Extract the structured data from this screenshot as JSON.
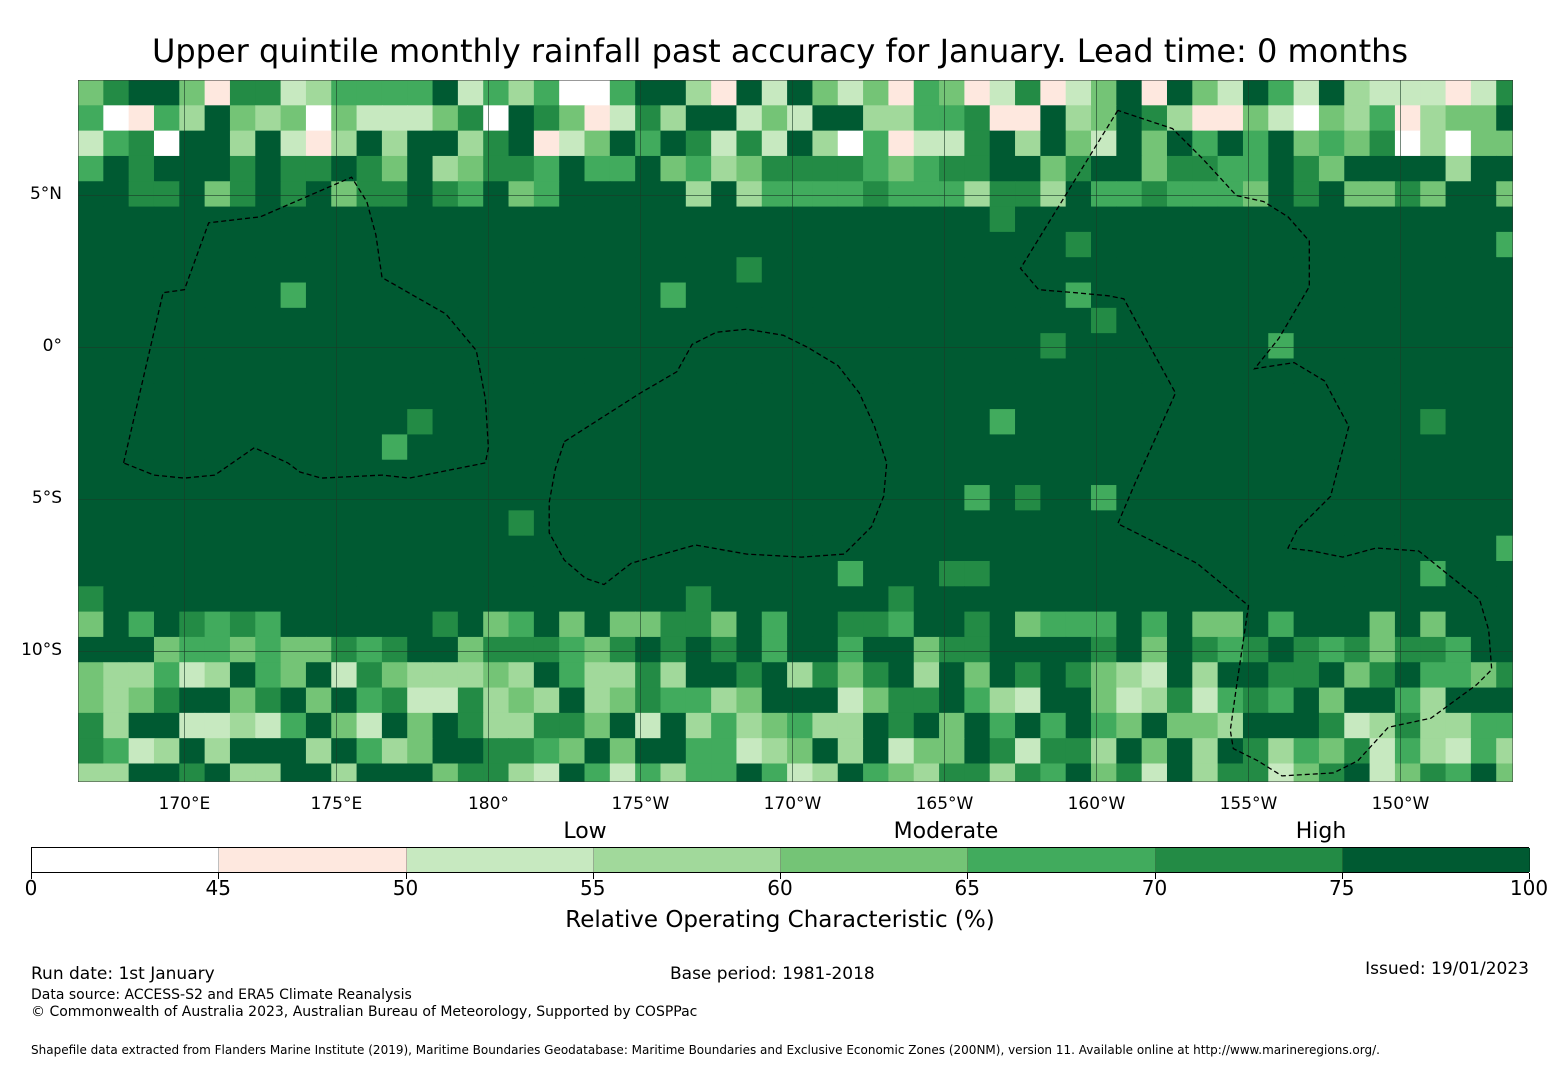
{
  "title": "Upper quintile monthly rainfall past accuracy for January. Lead time: 0 months",
  "map": {
    "lon_range": [
      166.5,
      213.7
    ],
    "lat_range": [
      -14.3,
      8.8
    ],
    "cell_deg": 0.833,
    "latitude_labels": [
      {
        "lat": 5,
        "label": "5°N"
      },
      {
        "lat": 0,
        "label": "0°"
      },
      {
        "lat": -5,
        "label": "5°S"
      },
      {
        "lat": -10,
        "label": "10°S"
      }
    ],
    "longitude_labels": [
      {
        "lon": 170,
        "label": "170°E"
      },
      {
        "lon": 175,
        "label": "175°E"
      },
      {
        "lon": 180,
        "label": "180°"
      },
      {
        "lon": 185,
        "label": "175°W"
      },
      {
        "lon": 190,
        "label": "170°W"
      },
      {
        "lon": 195,
        "label": "165°W"
      },
      {
        "lon": 200,
        "label": "160°W"
      },
      {
        "lon": 205,
        "label": "155°W"
      },
      {
        "lon": 210,
        "label": "150°W"
      }
    ],
    "eez_boundaries": [
      [
        [
          168,
          -3.8
        ],
        [
          169.3,
          1.8
        ],
        [
          170,
          1.9
        ],
        [
          170.8,
          4.1
        ],
        [
          172.5,
          4.3
        ],
        [
          175.5,
          5.6
        ],
        [
          176,
          4.8
        ],
        [
          176.3,
          3.7
        ],
        [
          176.5,
          2.3
        ],
        [
          177.2,
          1.9
        ],
        [
          178.6,
          1.1
        ],
        [
          179.6,
          -0.1
        ],
        [
          179.9,
          -1.7
        ],
        [
          180,
          -3.3
        ],
        [
          179.9,
          -3.8
        ],
        [
          177.4,
          -4.3
        ],
        [
          176.5,
          -4.2
        ],
        [
          174.5,
          -4.3
        ],
        [
          173.8,
          -4.1
        ],
        [
          173.4,
          -3.8
        ],
        [
          172.3,
          -3.3
        ],
        [
          171,
          -4.2
        ],
        [
          170,
          -4.3
        ],
        [
          169,
          -4.2
        ],
        [
          168,
          -3.8
        ]
      ],
      [
        [
          182.5,
          -3.1
        ],
        [
          185,
          -1.5
        ],
        [
          186.2,
          -0.8
        ],
        [
          186.7,
          0.1
        ],
        [
          187.5,
          0.5
        ],
        [
          188.5,
          0.6
        ],
        [
          189.7,
          0.4
        ],
        [
          190.5,
          0
        ],
        [
          191.5,
          -0.6
        ],
        [
          192.2,
          -1.5
        ],
        [
          192.7,
          -2.6
        ],
        [
          193.1,
          -3.8
        ],
        [
          193,
          -4.9
        ],
        [
          192.6,
          -5.9
        ],
        [
          191.7,
          -6.8
        ],
        [
          190.3,
          -6.9
        ],
        [
          188.5,
          -6.8
        ],
        [
          186.8,
          -6.5
        ],
        [
          184.7,
          -7.1
        ],
        [
          183.8,
          -7.8
        ],
        [
          183.2,
          -7.6
        ],
        [
          182.5,
          -7
        ],
        [
          182,
          -6.1
        ],
        [
          182,
          -5.1
        ],
        [
          182.2,
          -4
        ],
        [
          182.5,
          -3.1
        ]
      ],
      [
        [
          200.7,
          7.8
        ],
        [
          197.5,
          2.6
        ],
        [
          198.1,
          1.9
        ],
        [
          199.3,
          1.8
        ],
        [
          200.4,
          1.7
        ],
        [
          200.9,
          1.6
        ],
        [
          202.6,
          -1.5
        ],
        [
          201.8,
          -3.3
        ],
        [
          201.3,
          -4.4
        ],
        [
          200.7,
          -5.8
        ],
        [
          203.3,
          -7.1
        ],
        [
          205,
          -8.5
        ],
        [
          204.6,
          -11.2
        ],
        [
          204.4,
          -12.6
        ],
        [
          204.5,
          -13.2
        ],
        [
          205.3,
          -13.6
        ],
        [
          206.1,
          -14.1
        ],
        [
          207.8,
          -14
        ],
        [
          208.6,
          -13.6
        ],
        [
          209.6,
          -12.5
        ],
        [
          211,
          -12.2
        ],
        [
          212.5,
          -11.1
        ],
        [
          213,
          -10.6
        ],
        [
          212.9,
          -9.3
        ],
        [
          212.6,
          -8.3
        ],
        [
          211.6,
          -7.5
        ],
        [
          210.6,
          -6.7
        ],
        [
          209.2,
          -6.6
        ],
        [
          208.1,
          -6.9
        ],
        [
          207.1,
          -6.7
        ],
        [
          206.3,
          -6.6
        ],
        [
          206.6,
          -6
        ],
        [
          207.7,
          -4.9
        ],
        [
          208.3,
          -2.6
        ],
        [
          207.5,
          -1.1
        ],
        [
          206.5,
          -0.5
        ],
        [
          205.2,
          -0.7
        ],
        [
          206,
          0.3
        ],
        [
          207,
          2
        ],
        [
          207,
          3.5
        ],
        [
          206.3,
          4.3
        ],
        [
          205.5,
          4.8
        ],
        [
          204.6,
          5
        ],
        [
          203.5,
          6.2
        ],
        [
          202.5,
          7.2
        ],
        [
          201.3,
          7.6
        ],
        [
          200.7,
          7.8
        ]
      ]
    ],
    "legend_categories": [
      {
        "label": "Low"
      },
      {
        "label": "Moderate"
      },
      {
        "label": "High"
      }
    ],
    "colorbar": {
      "title": "Relative Operating Characteristic (%)",
      "bins": [
        {
          "from": 0,
          "to": 45,
          "color": "#ffffff"
        },
        {
          "from": 45,
          "to": 50,
          "color": "#fee8df"
        },
        {
          "from": 50,
          "to": 55,
          "color": "#c7e9c0"
        },
        {
          "from": 55,
          "to": 60,
          "color": "#a1d99b"
        },
        {
          "from": 60,
          "to": 65,
          "color": "#74c476"
        },
        {
          "from": 65,
          "to": 70,
          "color": "#41ab5d"
        },
        {
          "from": 70,
          "to": 75,
          "color": "#238b45"
        },
        {
          "from": 75,
          "to": 100,
          "color": "#005a32"
        }
      ],
      "tick_labels": [
        "0",
        "45",
        "50",
        "55",
        "60",
        "65",
        "70",
        "75",
        "100"
      ]
    }
  },
  "footer": {
    "run_date": "Run date: 1st January",
    "base_period": "Base period: 1981-2018",
    "issued": "Issued: 19/01/2023",
    "data_source": "Data source: ACCESS-S2 and ERA5 Climate Reanalysis",
    "copyright": "© Commonwealth of Australia 2023, Australian Bureau of Meteorology, Supported by COSPPac",
    "shapefile": "Shapefile data extracted from Flanders Marine Institute (2019), Maritime Boundaries Geodatabase: Maritime Boundaries and Exclusive Economic Zones (200NM), version 11. Available online at http://www.marineregions.org/."
  }
}
